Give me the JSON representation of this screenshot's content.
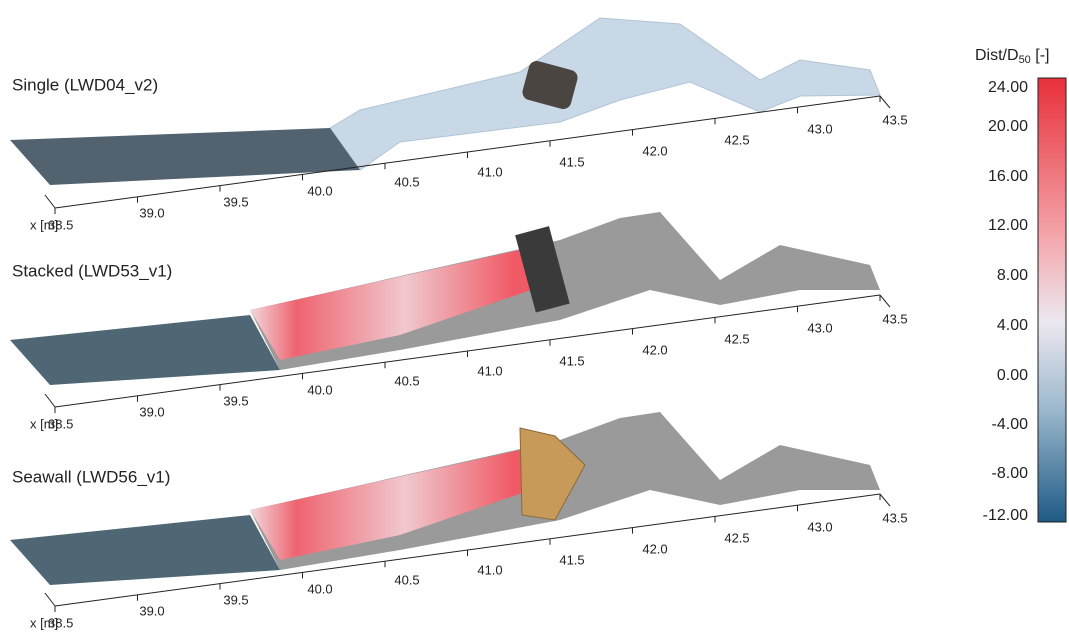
{
  "panels": [
    {
      "title": "Single (LWD04_v2)",
      "axis_label": "x [m]",
      "ticks": [
        "38.5",
        "39.0",
        "39.5",
        "40.0",
        "40.5",
        "41.0",
        "41.5",
        "42.0",
        "42.5",
        "43.0",
        "43.5"
      ]
    },
    {
      "title": "Stacked (LWD53_v1)",
      "axis_label": "x [m]",
      "ticks": [
        "38.5",
        "39.0",
        "39.5",
        "40.0",
        "40.5",
        "41.0",
        "41.5",
        "42.0",
        "42.5",
        "43.0",
        "43.5"
      ]
    },
    {
      "title": "Seawall (LWD56_v1)",
      "axis_label": "x [m]",
      "ticks": [
        "38.5",
        "39.0",
        "39.5",
        "40.0",
        "40.5",
        "41.0",
        "41.5",
        "42.0",
        "42.5",
        "43.0",
        "43.5"
      ]
    }
  ],
  "colorbar": {
    "title": {
      "main": "Dist/D",
      "sub": "50",
      "unit": " [-]"
    },
    "ticks": [
      "24.00",
      "20.00",
      "16.00",
      "12.00",
      "8.00",
      "4.00",
      "0.00",
      "-4.00",
      "-8.00",
      "-12.00"
    ]
  }
}
